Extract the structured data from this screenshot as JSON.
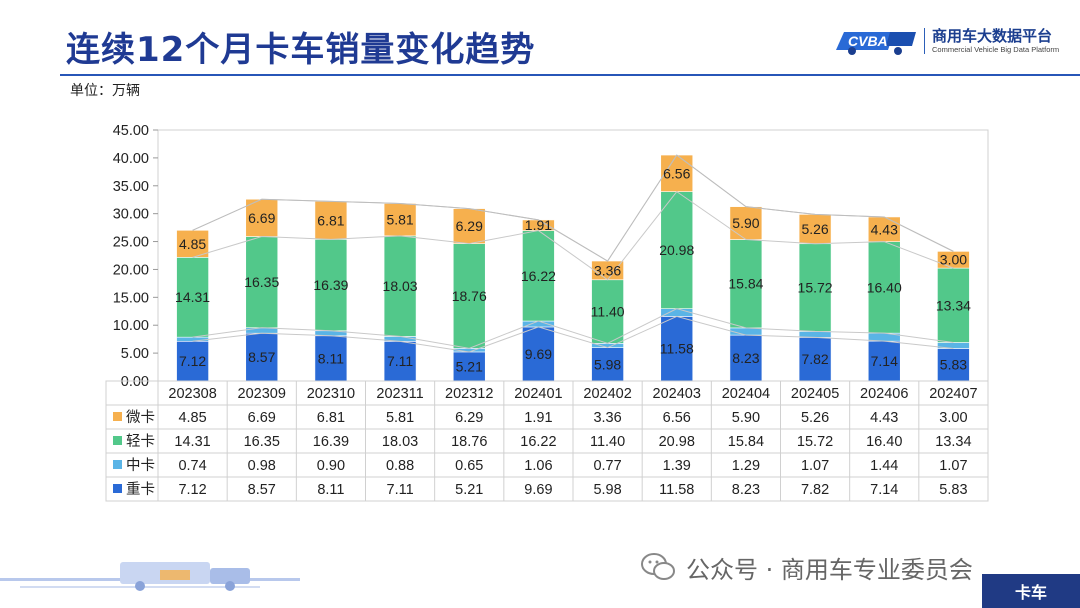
{
  "header": {
    "title": "连续12个月卡车销量变化趋势",
    "logo_brand_text": "CVBA",
    "logo_name_cn": "商用车大数据平台",
    "logo_name_en": "Commercial Vehicle Big Data Platform"
  },
  "unit_label": "单位：万辆",
  "footer": {
    "wechat_label": "公众号 · 商用车专业委员会",
    "category_badge": "卡车"
  },
  "colors": {
    "title": "#1f3a93",
    "heavy": "#2a6ad6",
    "medium": "#5ab4e6",
    "light": "#52c88a",
    "mini": "#f6b04e",
    "badge": "#203a84"
  },
  "chart_data": {
    "type": "bar",
    "stacked": true,
    "title": "连续12个月卡车销量变化趋势",
    "ylabel": "单位：万辆",
    "xlabel": "",
    "ylim": [
      0,
      45
    ],
    "yticks": [
      "0.00",
      "5.00",
      "10.00",
      "15.00",
      "20.00",
      "25.00",
      "30.00",
      "35.00",
      "40.00",
      "45.00"
    ],
    "categories": [
      "202308",
      "202309",
      "202310",
      "202311",
      "202312",
      "202401",
      "202402",
      "202403",
      "202404",
      "202405",
      "202406",
      "202407"
    ],
    "series": [
      {
        "name": "重卡",
        "color": "#2a6ad6",
        "values": [
          "7.12",
          "8.57",
          "8.11",
          "7.11",
          "5.21",
          "9.69",
          "5.98",
          "11.58",
          "8.23",
          "7.82",
          "7.14",
          "5.83"
        ]
      },
      {
        "name": "中卡",
        "color": "#5ab4e6",
        "values": [
          "0.74",
          "0.98",
          "0.90",
          "0.88",
          "0.65",
          "1.06",
          "0.77",
          "1.39",
          "1.29",
          "1.07",
          "1.44",
          "1.07"
        ]
      },
      {
        "name": "轻卡",
        "color": "#52c88a",
        "values": [
          "14.31",
          "16.35",
          "16.39",
          "18.03",
          "18.76",
          "16.22",
          "11.40",
          "20.98",
          "15.84",
          "15.72",
          "16.40",
          "13.34"
        ]
      },
      {
        "name": "微卡",
        "color": "#f6b04e",
        "values": [
          "4.85",
          "6.69",
          "6.81",
          "5.81",
          "6.29",
          "1.91",
          "3.36",
          "6.56",
          "5.90",
          "5.26",
          "4.43",
          "3.00"
        ]
      }
    ],
    "table_row_order": [
      "微卡",
      "轻卡",
      "中卡",
      "重卡"
    ],
    "data_label_series": [
      "重卡",
      "轻卡",
      "微卡"
    ],
    "grid": false,
    "legend": "data-table-left"
  }
}
